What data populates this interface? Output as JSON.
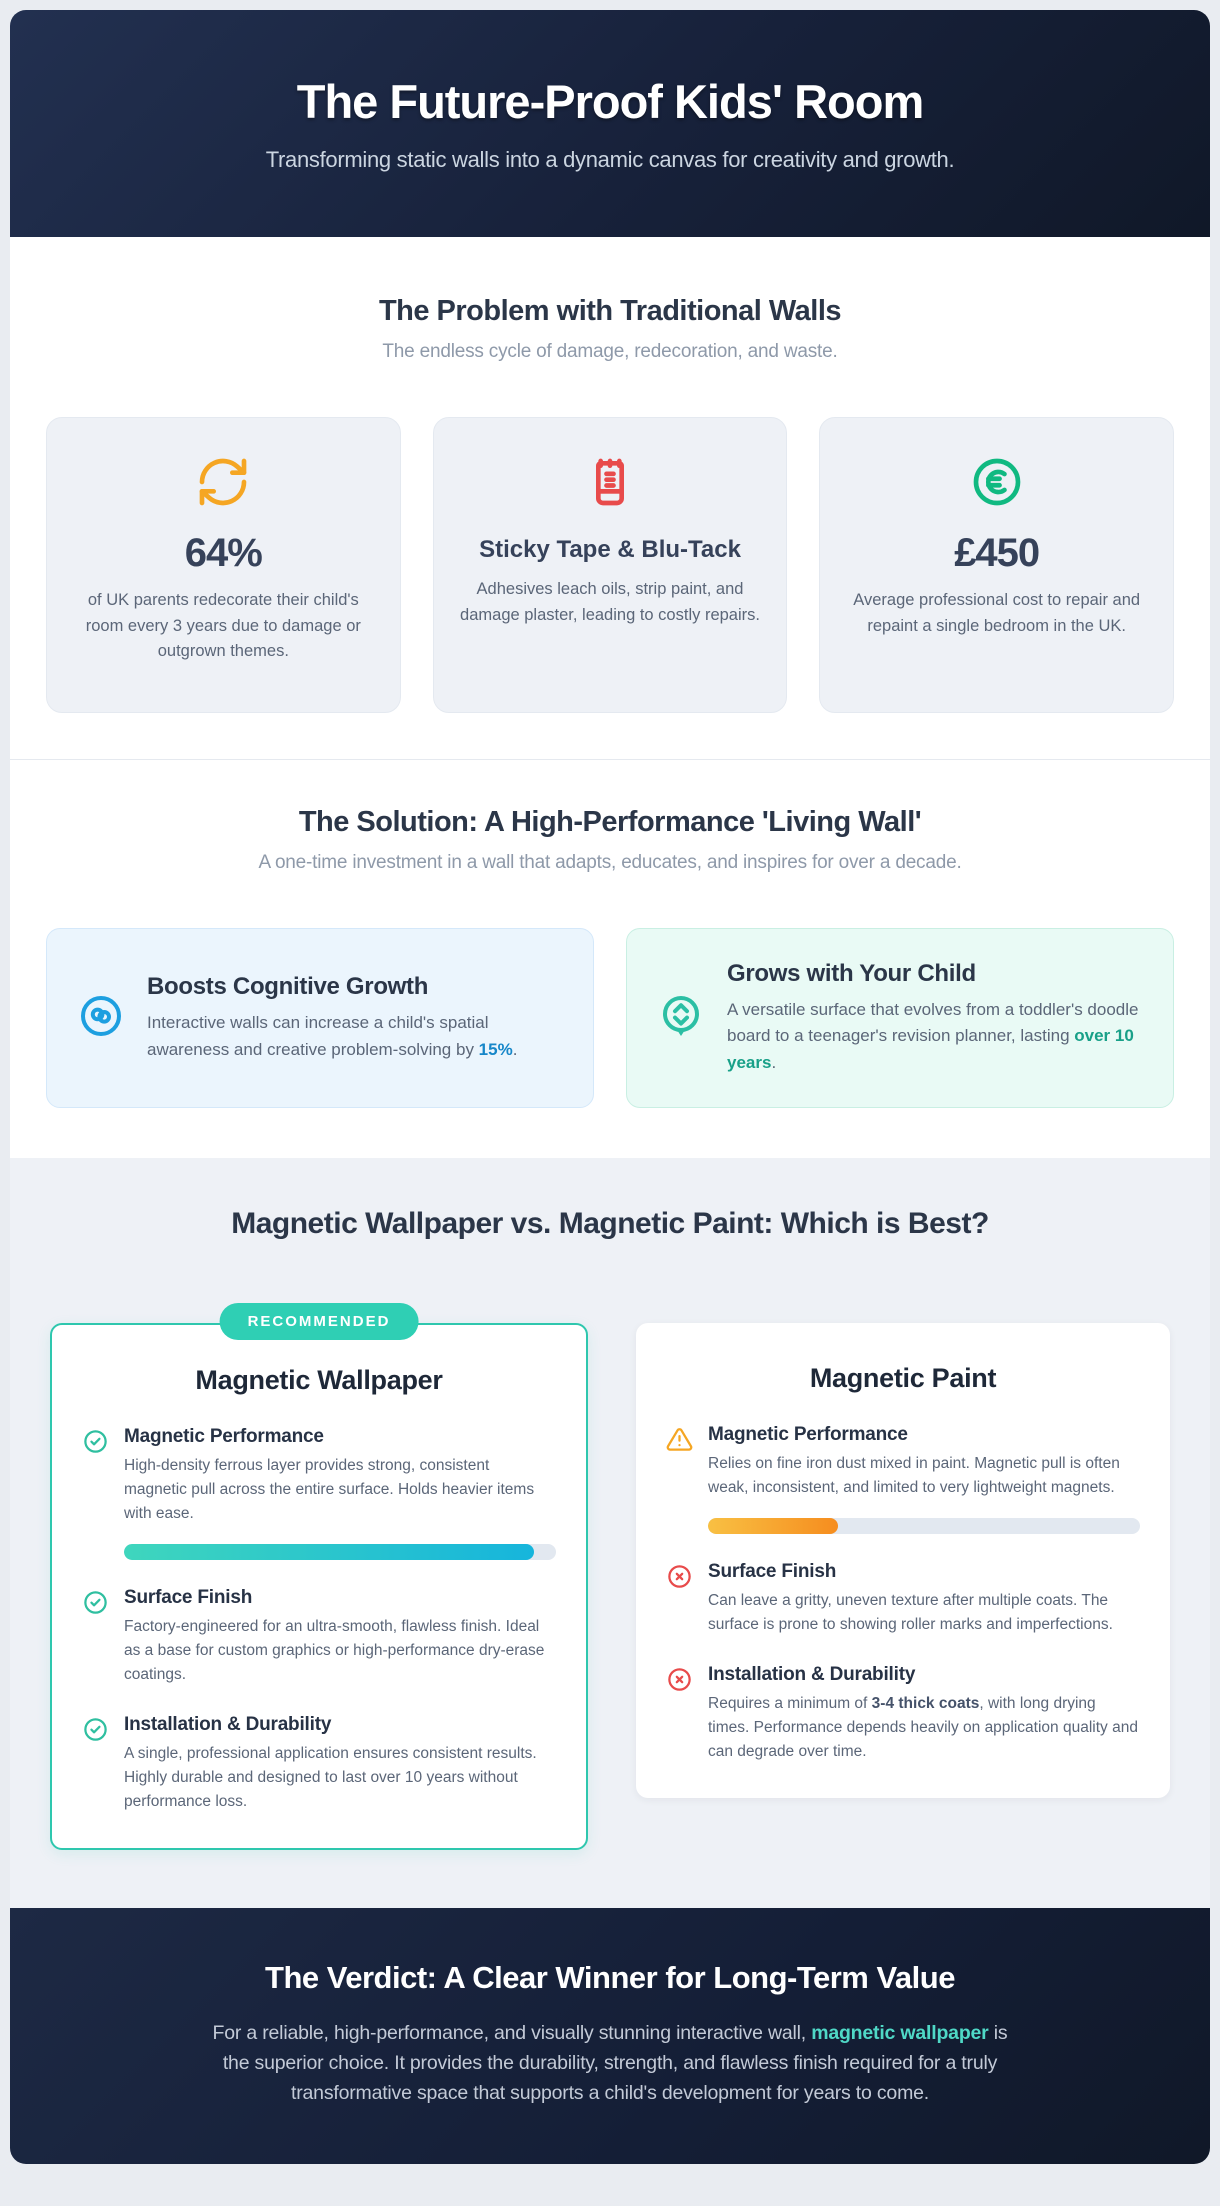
{
  "header": {
    "title": "The Future-Proof Kids' Room",
    "subtitle": "Transforming static walls into a dynamic canvas for creativity and growth."
  },
  "problem": {
    "title": "The Problem with Traditional Walls",
    "subtitle": "The endless cycle of damage, redecoration, and waste.",
    "cards": [
      {
        "icon": "refresh-cycle-icon",
        "accent_color": "#f5a623",
        "headline": "64%",
        "text": "of UK parents redecorate their child's room every 3 years due to damage or outgrown themes."
      },
      {
        "icon": "sticky-tape-icon",
        "accent_color": "#e84b4b",
        "headline": "Sticky Tape & Blu-Tack",
        "text": "Adhesives leach oils, strip paint, and damage plaster, leading to costly repairs."
      },
      {
        "icon": "euro-coin-icon",
        "accent_color": "#10b981",
        "headline": "£450",
        "text": "Average professional cost to repair and repaint a single bedroom in the UK."
      }
    ]
  },
  "solution": {
    "title": "The Solution: A High-Performance 'Living Wall'",
    "subtitle": "A one-time investment in a wall that adapts, educates, and inspires for over a decade.",
    "cards": [
      {
        "icon": "brain-icon",
        "accent_color": "#1d9fe0",
        "title": "Boosts Cognitive Growth",
        "text_before": "Interactive walls can increase a child's spatial awareness and creative problem-solving by ",
        "highlight": "15%",
        "text_after": "."
      },
      {
        "icon": "grows-pin-icon",
        "accent_color": "#2bbfa4",
        "title": "Grows with Your Child",
        "text_before": "A versatile surface that evolves from a toddler's doodle board to a teenager's revision planner, lasting ",
        "highlight": "over 10 years",
        "text_after": "."
      }
    ]
  },
  "comparison": {
    "title": "Magnetic Wallpaper vs. Magnetic Paint: Which is Best?",
    "recommended_badge": "RECOMMENDED",
    "wallpaper": {
      "title": "Magnetic Wallpaper",
      "items": [
        {
          "icon": "check-circle-icon",
          "title": "Magnetic Performance",
          "text": "High-density ferrous layer provides strong, consistent magnetic pull across the entire surface. Holds heavier items with ease.",
          "bar_percent": 95
        },
        {
          "icon": "check-circle-icon",
          "title": "Surface Finish",
          "text": "Factory-engineered for an ultra-smooth, flawless finish. Ideal as a base for custom graphics or high-performance dry-erase coatings."
        },
        {
          "icon": "check-circle-icon",
          "title": "Installation & Durability",
          "text": "A single, professional application ensures consistent results. Highly durable and designed to last over 10 years without performance loss."
        }
      ]
    },
    "paint": {
      "title": "Magnetic Paint",
      "items": [
        {
          "icon": "warning-triangle-icon",
          "title": "Magnetic Performance",
          "text": "Relies on fine iron dust mixed in paint. Magnetic pull is often weak, inconsistent, and limited to very lightweight magnets.",
          "bar_percent": 30
        },
        {
          "icon": "x-circle-icon",
          "title": "Surface Finish",
          "text": "Can leave a gritty, uneven texture after multiple coats. The surface is prone to showing roller marks and imperfections."
        },
        {
          "icon": "x-circle-icon",
          "title": "Installation & Durability",
          "text_before": "Requires a minimum of ",
          "bold": "3-4 thick coats",
          "text_after": ", with long drying times. Performance depends heavily on application quality and can degrade over time."
        }
      ]
    }
  },
  "verdict": {
    "title": "The Verdict: A Clear Winner for Long-Term Value",
    "text_before": "For a reliable, high-performance, and visually stunning interactive wall, ",
    "highlight": "magnetic wallpaper",
    "text_after": " is the superior choice. It provides the durability, strength, and flawless finish required for a truly transformative space that supports a child's development for years to come."
  },
  "colors": {
    "accent_teal": "#2fcfb4",
    "accent_blue": "#1d9fe0",
    "warning_amber": "#f5a623",
    "error_red": "#e84b4b",
    "success_green": "#10b981",
    "dark_navy": "#141e36",
    "bar_track": "#e2e8f0"
  }
}
